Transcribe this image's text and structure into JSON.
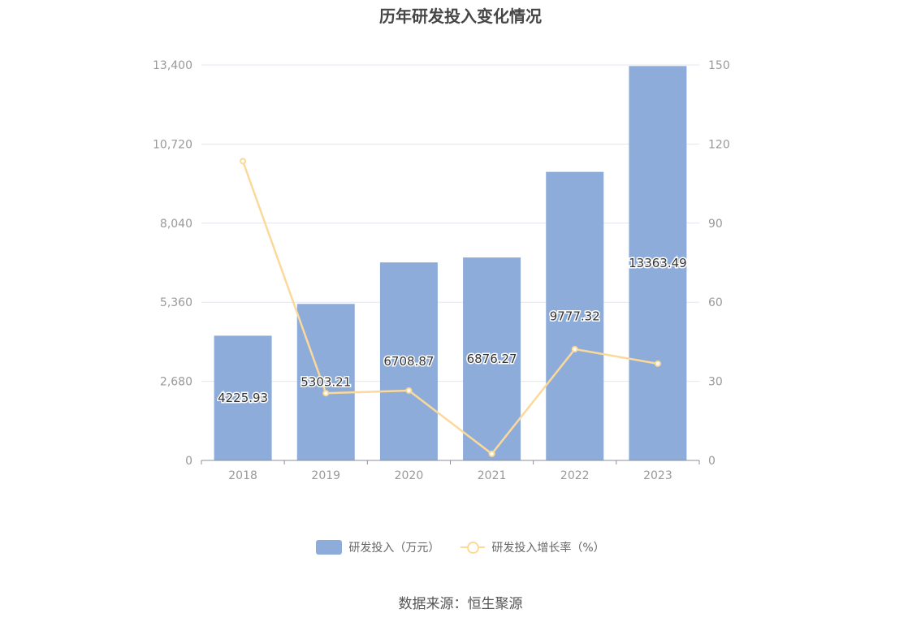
{
  "chart_data": {
    "type": "bar",
    "title": "历年研发投入变化情况",
    "categories": [
      "2018",
      "2019",
      "2020",
      "2021",
      "2022",
      "2023"
    ],
    "series": [
      {
        "name": "研发投入（万元）",
        "type": "bar",
        "axis": "left",
        "values": [
          4225.93,
          5303.21,
          6708.87,
          6876.27,
          9777.32,
          13363.49
        ],
        "labels": [
          "4225.93",
          "5303.21",
          "6708.87",
          "6876.27",
          "9777.32",
          "13363.49"
        ],
        "color": "#8eacda"
      },
      {
        "name": "研发投入增长率（%）",
        "type": "line",
        "axis": "right",
        "values": [
          113.5,
          25.5,
          26.5,
          2.5,
          42.2,
          36.7
        ],
        "color": "#fad99b"
      }
    ],
    "y_left": {
      "min": 0,
      "max": 13400,
      "ticks": [
        "0",
        "2,680",
        "5,360",
        "8,040",
        "10,720",
        "13,400"
      ]
    },
    "y_right": {
      "min": 0,
      "max": 150,
      "ticks": [
        "0",
        "30",
        "60",
        "90",
        "120",
        "150"
      ]
    },
    "grid": true,
    "legend": "bottom-center"
  },
  "source": "数据来源：恒生聚源"
}
